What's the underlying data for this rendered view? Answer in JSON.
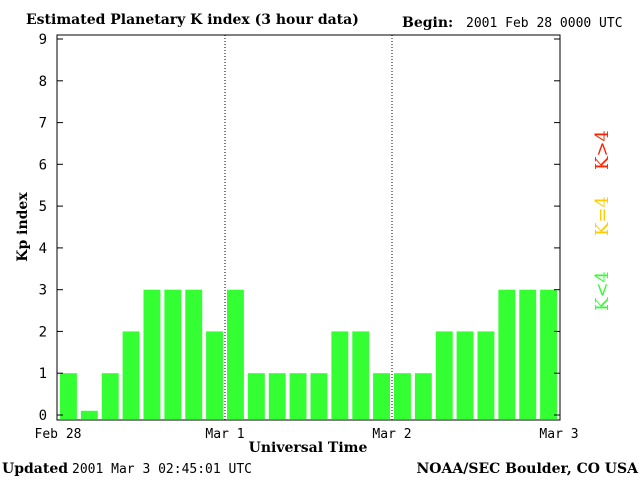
{
  "header": {
    "title": "Estimated Planetary K index (3 hour data)",
    "begin_label": "Begin:",
    "begin_value": "2001 Feb 28 0000 UTC"
  },
  "footer": {
    "updated_label": "Updated",
    "updated_value": "2001 Mar  3 02:45:01 UTC",
    "source": "NOAA/SEC Boulder, CO USA"
  },
  "legend": {
    "high": "K>4",
    "equal": "K=4",
    "low": "K<4"
  },
  "colors": {
    "bar_low": "#33ff33",
    "bar_equal": "#ffcc00",
    "bar_high": "#ff2200",
    "axis": "#000000",
    "day_divider": "#000000"
  },
  "chart_data": {
    "type": "bar",
    "title": "Estimated Planetary K index (3 hour data)",
    "xlabel": "Universal Time",
    "ylabel": "Kp index",
    "ylim": [
      0,
      9
    ],
    "yticks": [
      "0",
      "1",
      "2",
      "3",
      "4",
      "5",
      "6",
      "7",
      "8",
      "9"
    ],
    "xticks": [
      "Feb 28",
      "Mar 1",
      "Mar 2",
      "Mar 3"
    ],
    "grid": false,
    "bins_per_day": 8,
    "values": [
      1,
      0.1,
      1,
      2,
      3,
      3,
      3,
      2,
      3,
      1,
      1,
      1,
      1,
      2,
      2,
      1,
      1,
      1,
      2,
      2,
      2,
      3,
      3,
      3
    ]
  }
}
